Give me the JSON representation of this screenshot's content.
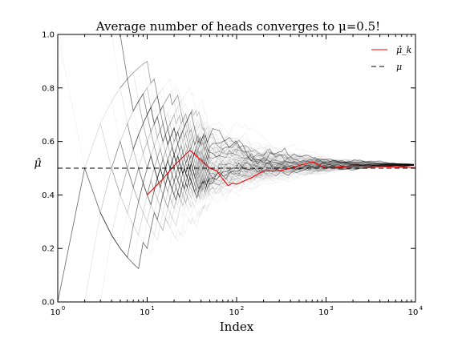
{
  "chart_data": {
    "type": "line",
    "title": "Average number of heads converges to μ=0.5!",
    "xlabel": "Index",
    "ylabel": "μ̂",
    "x_scale": "log",
    "xlim": [
      1,
      10000
    ],
    "ylim": [
      0.0,
      1.0
    ],
    "x_ticks": [
      {
        "value": 1,
        "base": "10",
        "exp": "0"
      },
      {
        "value": 10,
        "base": "10",
        "exp": "1"
      },
      {
        "value": 100,
        "base": "10",
        "exp": "2"
      },
      {
        "value": 1000,
        "base": "10",
        "exp": "3"
      },
      {
        "value": 10000,
        "base": "10",
        "exp": "4"
      }
    ],
    "y_ticks": [
      "0.0",
      "0.2",
      "0.4",
      "0.6",
      "0.8",
      "1.0"
    ],
    "legend": {
      "placement": "top-right",
      "entries": [
        {
          "label": "μ̂_k",
          "color": "#ff0000",
          "style": "solid"
        },
        {
          "label": "μ",
          "color": "#000000",
          "style": "dashed"
        }
      ]
    },
    "series": [
      {
        "name": "μ̂_k",
        "color": "#ff0000",
        "x": [
          10,
          15,
          20,
          30,
          40,
          50,
          60,
          70,
          80,
          90,
          100,
          150,
          200,
          300,
          400,
          500,
          700,
          1000,
          2000,
          5000,
          10000
        ],
        "y": [
          0.4,
          0.46,
          0.51,
          0.567,
          0.53,
          0.5,
          0.49,
          0.46,
          0.435,
          0.444,
          0.44,
          0.466,
          0.49,
          0.49,
          0.5,
          0.51,
          0.524,
          0.5,
          0.508,
          0.505,
          0.502
        ]
      },
      {
        "name": "μ",
        "color": "#000000",
        "style": "dashed",
        "x": [
          1,
          10000
        ],
        "y": [
          0.5,
          0.5
        ]
      }
    ],
    "background_paths": {
      "description_free": true,
      "count": 120,
      "color": "#000000",
      "converge_to": 0.5
    }
  }
}
